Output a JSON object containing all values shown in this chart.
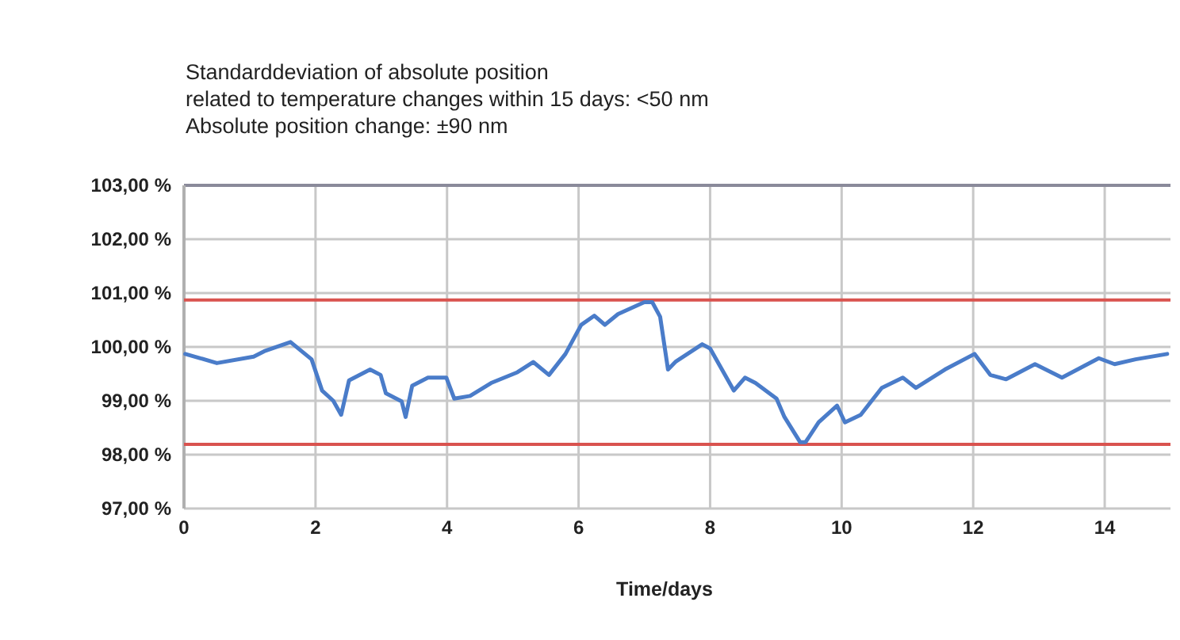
{
  "chart_data": {
    "type": "line",
    "title": "Standarddeviation of absolute position\nrelated to temperature changes within 15 days: <50 nm\nAbsolute position change: ±90 nm",
    "xlabel": "Time/days",
    "series": [
      {
        "color": "#4a7cc9",
        "x": [
          0.02,
          0.25,
          0.5,
          1.06,
          1.22,
          1.62,
          1.94,
          2.1,
          2.27,
          2.39,
          2.51,
          2.83,
          2.99,
          3.07,
          3.31,
          3.37,
          3.47,
          3.71,
          3.99,
          4.11,
          4.35,
          4.67,
          5.07,
          5.31,
          5.55,
          5.8,
          6.04,
          6.24,
          6.4,
          6.6,
          7.0,
          7.12,
          7.24,
          7.36,
          7.48,
          7.88,
          8.0,
          8.36,
          8.53,
          8.69,
          9.01,
          9.13,
          9.37,
          9.45,
          9.65,
          9.93,
          10.05,
          10.29,
          10.61,
          10.93,
          11.13,
          11.57,
          12.02,
          12.26,
          12.5,
          12.94,
          13.35,
          13.91,
          14.15,
          14.47,
          14.95
        ],
        "values": [
          99.87,
          99.79,
          99.7,
          99.82,
          99.92,
          100.09,
          99.77,
          99.19,
          99.0,
          98.74,
          99.38,
          99.58,
          99.48,
          99.14,
          98.99,
          98.7,
          99.28,
          99.43,
          99.43,
          99.04,
          99.09,
          99.33,
          99.53,
          99.72,
          99.48,
          99.87,
          100.41,
          100.58,
          100.41,
          100.61,
          100.83,
          100.83,
          100.56,
          99.58,
          99.73,
          100.05,
          99.97,
          99.19,
          99.43,
          99.33,
          99.04,
          98.7,
          98.23,
          98.23,
          98.6,
          98.91,
          98.6,
          98.74,
          99.24,
          99.43,
          99.24,
          99.58,
          99.87,
          99.48,
          99.4,
          99.68,
          99.43,
          99.79,
          99.68,
          99.77,
          99.87
        ]
      }
    ],
    "xlim": [
      0,
      15
    ],
    "xticks": [
      0,
      2,
      4,
      6,
      8,
      10,
      12,
      14
    ],
    "ylim": [
      97,
      103
    ],
    "yticks": [
      {
        "value": 97,
        "label": "97,00 %"
      },
      {
        "value": 98,
        "label": "98,00 %"
      },
      {
        "value": 99,
        "label": "99,00 %"
      },
      {
        "value": 100,
        "label": "100,00 %"
      },
      {
        "value": 101,
        "label": "101,00 %"
      },
      {
        "value": 102,
        "label": "102,00 %"
      },
      {
        "value": 103,
        "label": "103,00 %"
      }
    ],
    "ref_lines": [
      {
        "axis": "y",
        "value": 100.87,
        "color": "#d9534f"
      },
      {
        "axis": "y",
        "value": 98.19,
        "color": "#d9534f"
      }
    ],
    "grid": true,
    "marker": "none",
    "line_style": "solid"
  }
}
